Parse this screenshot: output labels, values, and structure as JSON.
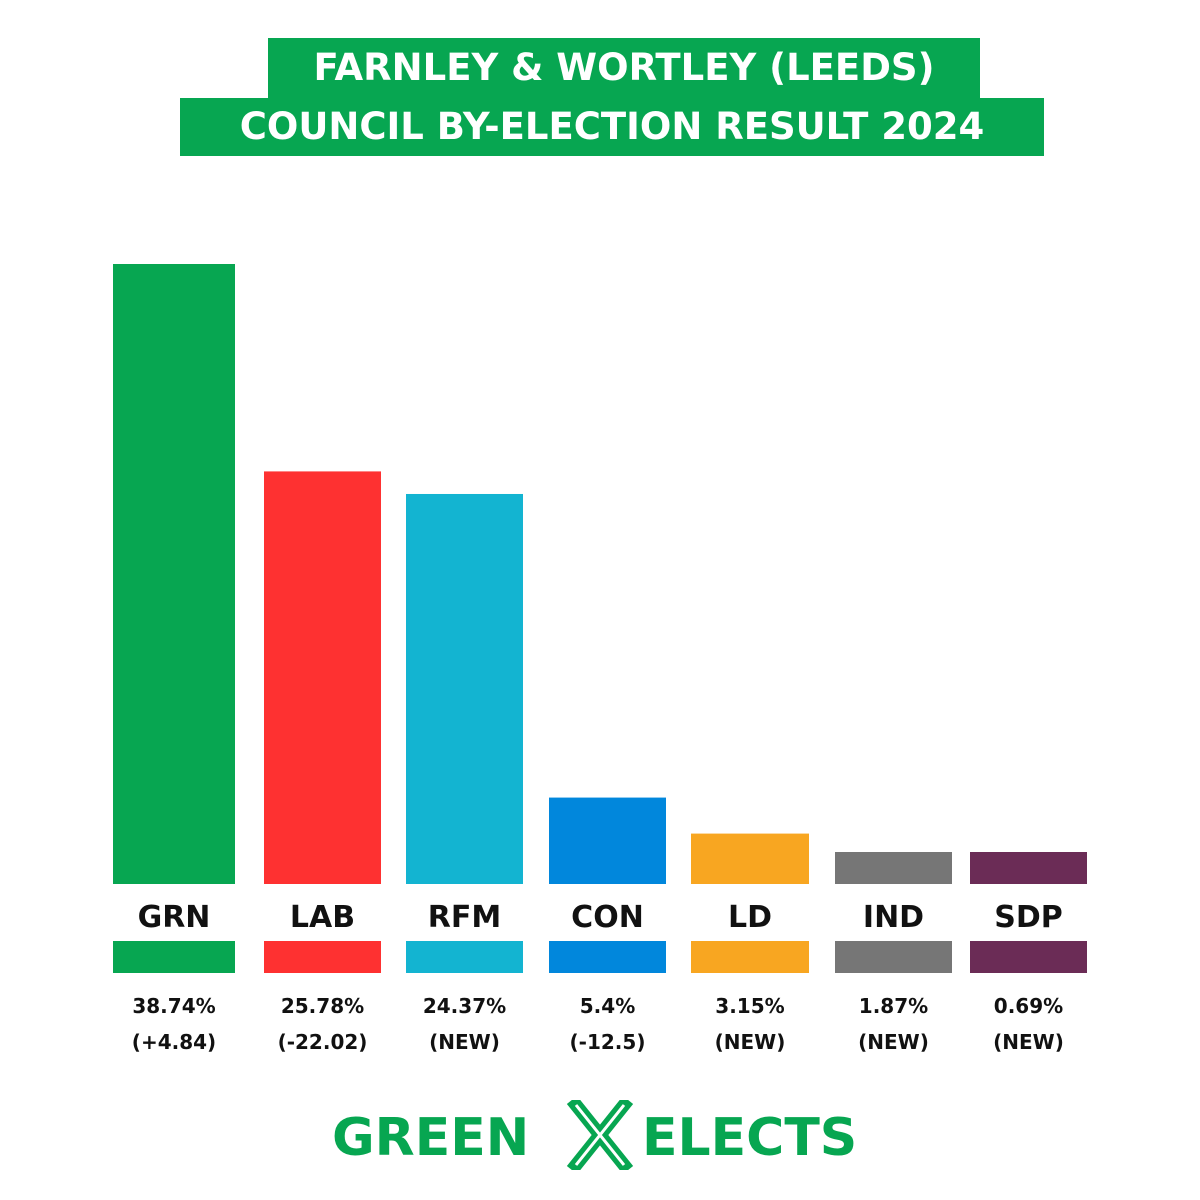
{
  "title_lines": [
    "FARNLEY & WORTLEY (LEEDS)",
    "COUNCIL BY-ELECTION RESULT 2024"
  ],
  "chart_data": {
    "type": "bar",
    "title": "FARNLEY & WORTLEY (LEEDS) COUNCIL BY-ELECTION RESULT 2024",
    "categories": [
      "GRN",
      "LAB",
      "RFM",
      "CON",
      "LD",
      "IND",
      "SDP"
    ],
    "values": [
      38.74,
      25.78,
      24.37,
      5.4,
      3.15,
      1.87,
      0.69
    ],
    "value_labels": [
      "38.74%",
      "25.78%",
      "24.37%",
      "5.4%",
      "3.15%",
      "1.87%",
      "0.69%"
    ],
    "change_labels": [
      "(+4.84)",
      "(-22.02)",
      "(NEW)",
      "(-12.5)",
      "(NEW)",
      "(NEW)",
      "(NEW)"
    ],
    "colors": [
      "#07a651",
      "#fe3131",
      "#13b4d1",
      "#0187dc",
      "#f8a621",
      "#767676",
      "#6b2c56"
    ],
    "xlabel": "",
    "ylabel": "",
    "ylim": [
      0,
      38.74
    ],
    "grid": false,
    "legend": "none"
  },
  "logo": {
    "left_text": "GREEN",
    "right_text": "ELECTS",
    "color": "#07a651",
    "icon": "x-cross-icon"
  }
}
